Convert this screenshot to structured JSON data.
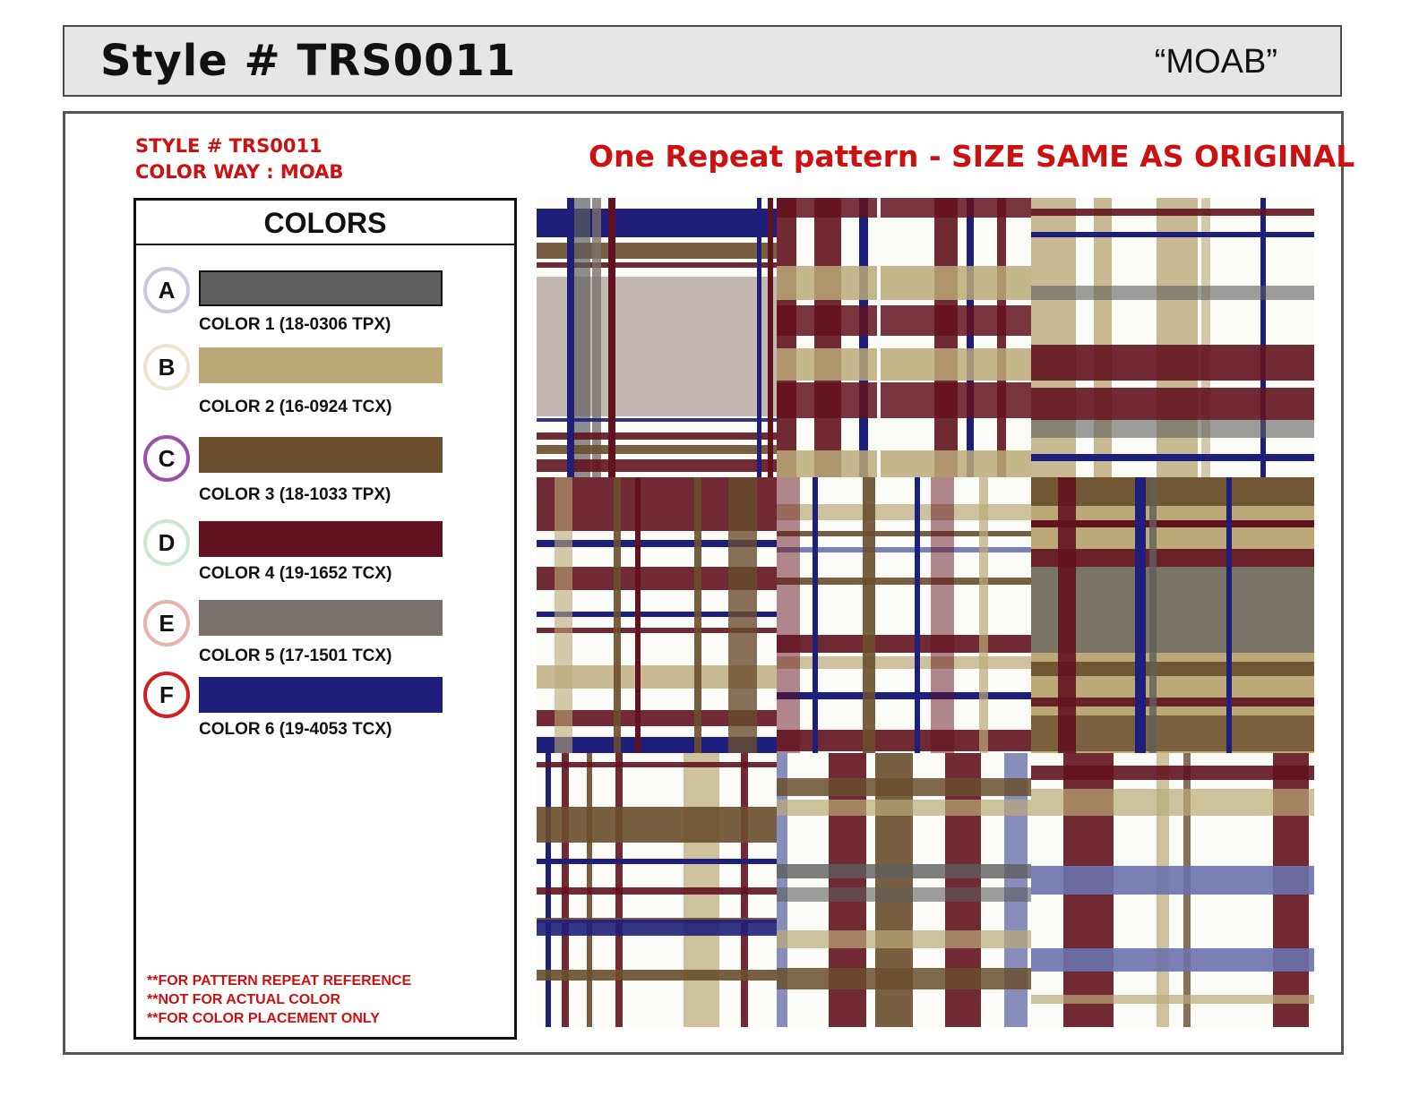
{
  "header": {
    "title": "Style # TRS0011",
    "colorway_name": "“MOAB”"
  },
  "meta": {
    "style_line": "STYLE # TRS0011",
    "colorway_line": "COLOR WAY : MOAB"
  },
  "headline": "One Repeat pattern - SIZE SAME AS ORIGINAL",
  "colors_panel": {
    "title": "COLORS",
    "swatches": [
      {
        "letter": "A",
        "label": "COLOR 1 (18-0306 TPX)",
        "hex": "#5e5e5e",
        "ring": "#c9c9dd"
      },
      {
        "letter": "B",
        "label": "COLOR 2 (16-0924 TCX)",
        "hex": "#bba978",
        "ring": "#ece6d0"
      },
      {
        "letter": "C",
        "label": "COLOR 3 (18-1033 TPX)",
        "hex": "#6a4e2e",
        "ring": "#9a4fa8"
      },
      {
        "letter": "D",
        "label": "COLOR 4 (19-1652 TCX)",
        "hex": "#62121e",
        "ring": "#cfe6d4"
      },
      {
        "letter": "E",
        "label": "COLOR 5 (17-1501 TCX)",
        "hex": "#7a716d",
        "ring": "#e7b2ae"
      },
      {
        "letter": "F",
        "label": "COLOR 6 (19-4053 TCX)",
        "hex": "#1e1f7a",
        "ring": "#cc2222"
      }
    ],
    "notes": [
      "**FOR PATTERN REPEAT REFERENCE",
      "**NOT FOR ACTUAL COLOR",
      "**FOR COLOR PLACEMENT ONLY"
    ]
  },
  "palette": {
    "maroon": "#62121e",
    "navy": "#1e1f7a",
    "brown": "#6a4e2e",
    "khaki": "#bba978",
    "gray": "#5e5e5e",
    "taupe": "#7a716d",
    "white": "#fbfbf8",
    "light_gray": "#c2b8b1",
    "periwinkle": "#6b72ad"
  },
  "patterns": [
    {
      "name": "plaid-1",
      "base": "white"
    },
    {
      "name": "plaid-2",
      "base": "white"
    },
    {
      "name": "plaid-3",
      "base": "white"
    },
    {
      "name": "plaid-4",
      "base": "white"
    },
    {
      "name": "plaid-5",
      "base": "white"
    },
    {
      "name": "plaid-6",
      "base": "khaki"
    },
    {
      "name": "plaid-7",
      "base": "white"
    },
    {
      "name": "plaid-8",
      "base": "white"
    },
    {
      "name": "plaid-9",
      "base": "white"
    }
  ]
}
